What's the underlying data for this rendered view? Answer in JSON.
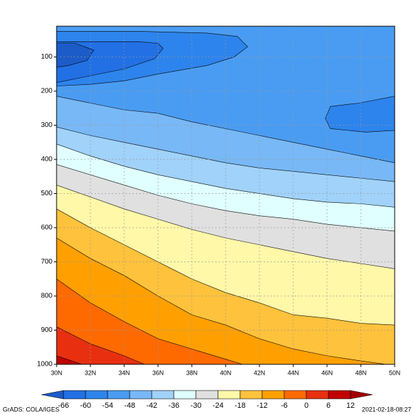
{
  "chart_data": {
    "type": "contour",
    "xlim": [
      30,
      50
    ],
    "ylim": [
      1000,
      10
    ],
    "xticks": [
      {
        "value": 30,
        "label": "30N"
      },
      {
        "value": 32,
        "label": "32N"
      },
      {
        "value": 34,
        "label": "34N"
      },
      {
        "value": 36,
        "label": "36N"
      },
      {
        "value": 38,
        "label": "38N"
      },
      {
        "value": 40,
        "label": "40N"
      },
      {
        "value": 42,
        "label": "42N"
      },
      {
        "value": 44,
        "label": "44N"
      },
      {
        "value": 46,
        "label": "46N"
      },
      {
        "value": 48,
        "label": "48N"
      },
      {
        "value": 50,
        "label": "50N"
      }
    ],
    "yticks": [
      100,
      200,
      300,
      400,
      500,
      600,
      700,
      800,
      900,
      1000
    ],
    "grid": true,
    "colorbar": {
      "levels": [
        -66,
        -60,
        -54,
        -48,
        -42,
        -36,
        -30,
        -24,
        -18,
        -12,
        -6,
        0,
        6,
        12
      ],
      "colors": [
        "#1c5cc8",
        "#2270e4",
        "#2d84ec",
        "#4a9cf2",
        "#78b8f6",
        "#a0d2fa",
        "#e0ffff",
        "#e0e0e0",
        "#fff8a8",
        "#ffc23c",
        "#ffa000",
        "#ff6a00",
        "#e83010",
        "#c00000",
        "#a00000"
      ]
    },
    "contours": [
      {
        "level": -48,
        "lat": [
          30,
          32,
          34,
          36,
          38,
          40,
          42,
          44,
          46,
          48,
          50
        ],
        "p": [
          215,
          235,
          255,
          265,
          290,
          310,
          330,
          350,
          370,
          390,
          410
        ]
      },
      {
        "level": -42,
        "lat": [
          30,
          32,
          34,
          36,
          38,
          40,
          42,
          44,
          46,
          48,
          50
        ],
        "p": [
          305,
          330,
          350,
          370,
          390,
          410,
          425,
          435,
          445,
          455,
          465
        ]
      },
      {
        "level": -36,
        "lat": [
          30,
          32,
          34,
          36,
          38,
          40,
          42,
          44,
          46,
          48,
          50
        ],
        "p": [
          355,
          390,
          420,
          445,
          465,
          485,
          500,
          515,
          525,
          530,
          540
        ]
      },
      {
        "level": -30,
        "lat": [
          30,
          32,
          34,
          36,
          38,
          40,
          42,
          44,
          46,
          48,
          50
        ],
        "p": [
          415,
          445,
          475,
          505,
          530,
          550,
          565,
          575,
          590,
          600,
          610
        ]
      },
      {
        "level": -24,
        "lat": [
          30,
          32,
          34,
          36,
          38,
          40,
          42,
          44,
          46,
          48,
          50
        ],
        "p": [
          475,
          510,
          545,
          575,
          605,
          630,
          650,
          670,
          690,
          705,
          720
        ]
      },
      {
        "level": -18,
        "lat": [
          30,
          32,
          34,
          36,
          38,
          40,
          42,
          44,
          46,
          48,
          50
        ],
        "p": [
          545,
          600,
          650,
          700,
          750,
          790,
          820,
          855,
          865,
          880,
          885
        ]
      },
      {
        "level": -12,
        "lat": [
          30,
          32,
          34,
          36,
          38,
          40,
          42,
          44,
          46,
          48,
          49.5
        ],
        "p": [
          630,
          690,
          740,
          800,
          855,
          885,
          925,
          955,
          975,
          990,
          1000
        ]
      },
      {
        "level": -6,
        "lat": [
          30,
          32,
          34,
          36,
          38,
          40,
          41
        ],
        "p": [
          750,
          820,
          875,
          925,
          955,
          985,
          1000
        ]
      },
      {
        "level": 0,
        "lat": [
          30,
          32,
          34,
          35.2
        ],
        "p": [
          890,
          940,
          975,
          1000
        ]
      },
      {
        "level": 6,
        "lat": [
          30,
          31.5
        ],
        "p": [
          975,
          1000
        ]
      }
    ],
    "closed_contours": [
      {
        "level": -54,
        "lat": [
          30,
          34.8,
          38.9,
          40.7,
          41.3,
          40.5,
          38.9,
          36,
          34,
          32,
          30
        ],
        "p": [
          25,
          25,
          30,
          40,
          70,
          100,
          125,
          150,
          170,
          180,
          185
        ]
      },
      {
        "level": -60,
        "lat": [
          30,
          34.8,
          36,
          36.3,
          35.8,
          34,
          32,
          30
        ],
        "p": [
          55,
          55,
          60,
          75,
          105,
          135,
          155,
          175
        ]
      },
      {
        "level": -66,
        "lat": [
          30,
          31.1,
          32.2,
          31.8,
          30.7,
          30
        ],
        "p": [
          60,
          60,
          80,
          110,
          125,
          130
        ]
      },
      {
        "level": -54,
        "lat": [
          50,
          47.9,
          46.2,
          45.9,
          46.2,
          48.3,
          50
        ],
        "p": [
          215,
          235,
          245,
          280,
          310,
          320,
          315
        ]
      }
    ],
    "footer_left": "GrADS: COLA/IGES",
    "footer_right": "2021-02-18-08:27"
  }
}
